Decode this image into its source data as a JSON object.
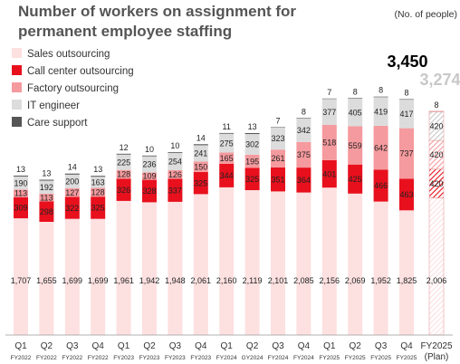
{
  "title_line1": "Number of workers on assignment for",
  "title_line2": "permanent employee staffing",
  "unit": "(No. of people)",
  "chart_data": {
    "type": "bar",
    "stacked": true,
    "categories": [
      {
        "q": "Q1",
        "fy": "FY2022"
      },
      {
        "q": "Q2",
        "fy": "FY2022"
      },
      {
        "q": "Q3",
        "fy": "FY2022"
      },
      {
        "q": "Q4",
        "fy": "FY2022"
      },
      {
        "q": "Q1",
        "fy": "FY2023"
      },
      {
        "q": "Q2",
        "fy": "FY2023"
      },
      {
        "q": "Q3",
        "fy": "FY2023"
      },
      {
        "q": "Q4",
        "fy": "FY2023"
      },
      {
        "q": "Q1",
        "fy": "FY2024"
      },
      {
        "q": "Q2",
        "fy": "GY2024"
      },
      {
        "q": "Q3",
        "fy": "FY2024"
      },
      {
        "q": "Q4",
        "fy": "FY2024"
      },
      {
        "q": "Q1",
        "fy": "FY2025"
      },
      {
        "q": "Q2",
        "fy": "FY2025"
      },
      {
        "q": "Q3",
        "fy": "FY2025"
      },
      {
        "q": "Q4",
        "fy": "FY2025"
      },
      {
        "q": "FY2025",
        "fy": "(Plan)"
      }
    ],
    "series": [
      {
        "name": "Sales outsourcing",
        "color": "#fde0e0",
        "values": [
          1707,
          1655,
          1699,
          1699,
          1961,
          1942,
          1948,
          2061,
          2160,
          2119,
          2101,
          2085,
          2156,
          2069,
          1952,
          1825,
          2006
        ]
      },
      {
        "name": "Call center outsourcing",
        "color": "#e8101d",
        "values": [
          309,
          298,
          322,
          325,
          326,
          328,
          337,
          325,
          344,
          325,
          351,
          364,
          401,
          425,
          466,
          463,
          420
        ]
      },
      {
        "name": "Factory outsourcing",
        "color": "#f59a9e",
        "values": [
          113,
          113,
          127,
          128,
          128,
          109,
          126,
          150,
          165,
          195,
          261,
          375,
          518,
          559,
          642,
          737,
          420
        ]
      },
      {
        "name": "IT engineer",
        "color": "#dcdcdc",
        "values": [
          190,
          192,
          200,
          163,
          225,
          236,
          254,
          241,
          275,
          302,
          323,
          342,
          377,
          405,
          419,
          417,
          420
        ]
      },
      {
        "name": "Care support",
        "color": "#555555",
        "values": [
          13,
          13,
          14,
          13,
          12,
          10,
          10,
          14,
          11,
          13,
          7,
          8,
          7,
          8,
          8,
          8,
          8
        ]
      }
    ],
    "highlight_totals": [
      {
        "category_index": 15,
        "label": "3,450",
        "color": "#000000"
      },
      {
        "category_index": 16,
        "label": "3,274",
        "color": "#c8c8c8"
      }
    ],
    "plan_category_index": 16
  }
}
